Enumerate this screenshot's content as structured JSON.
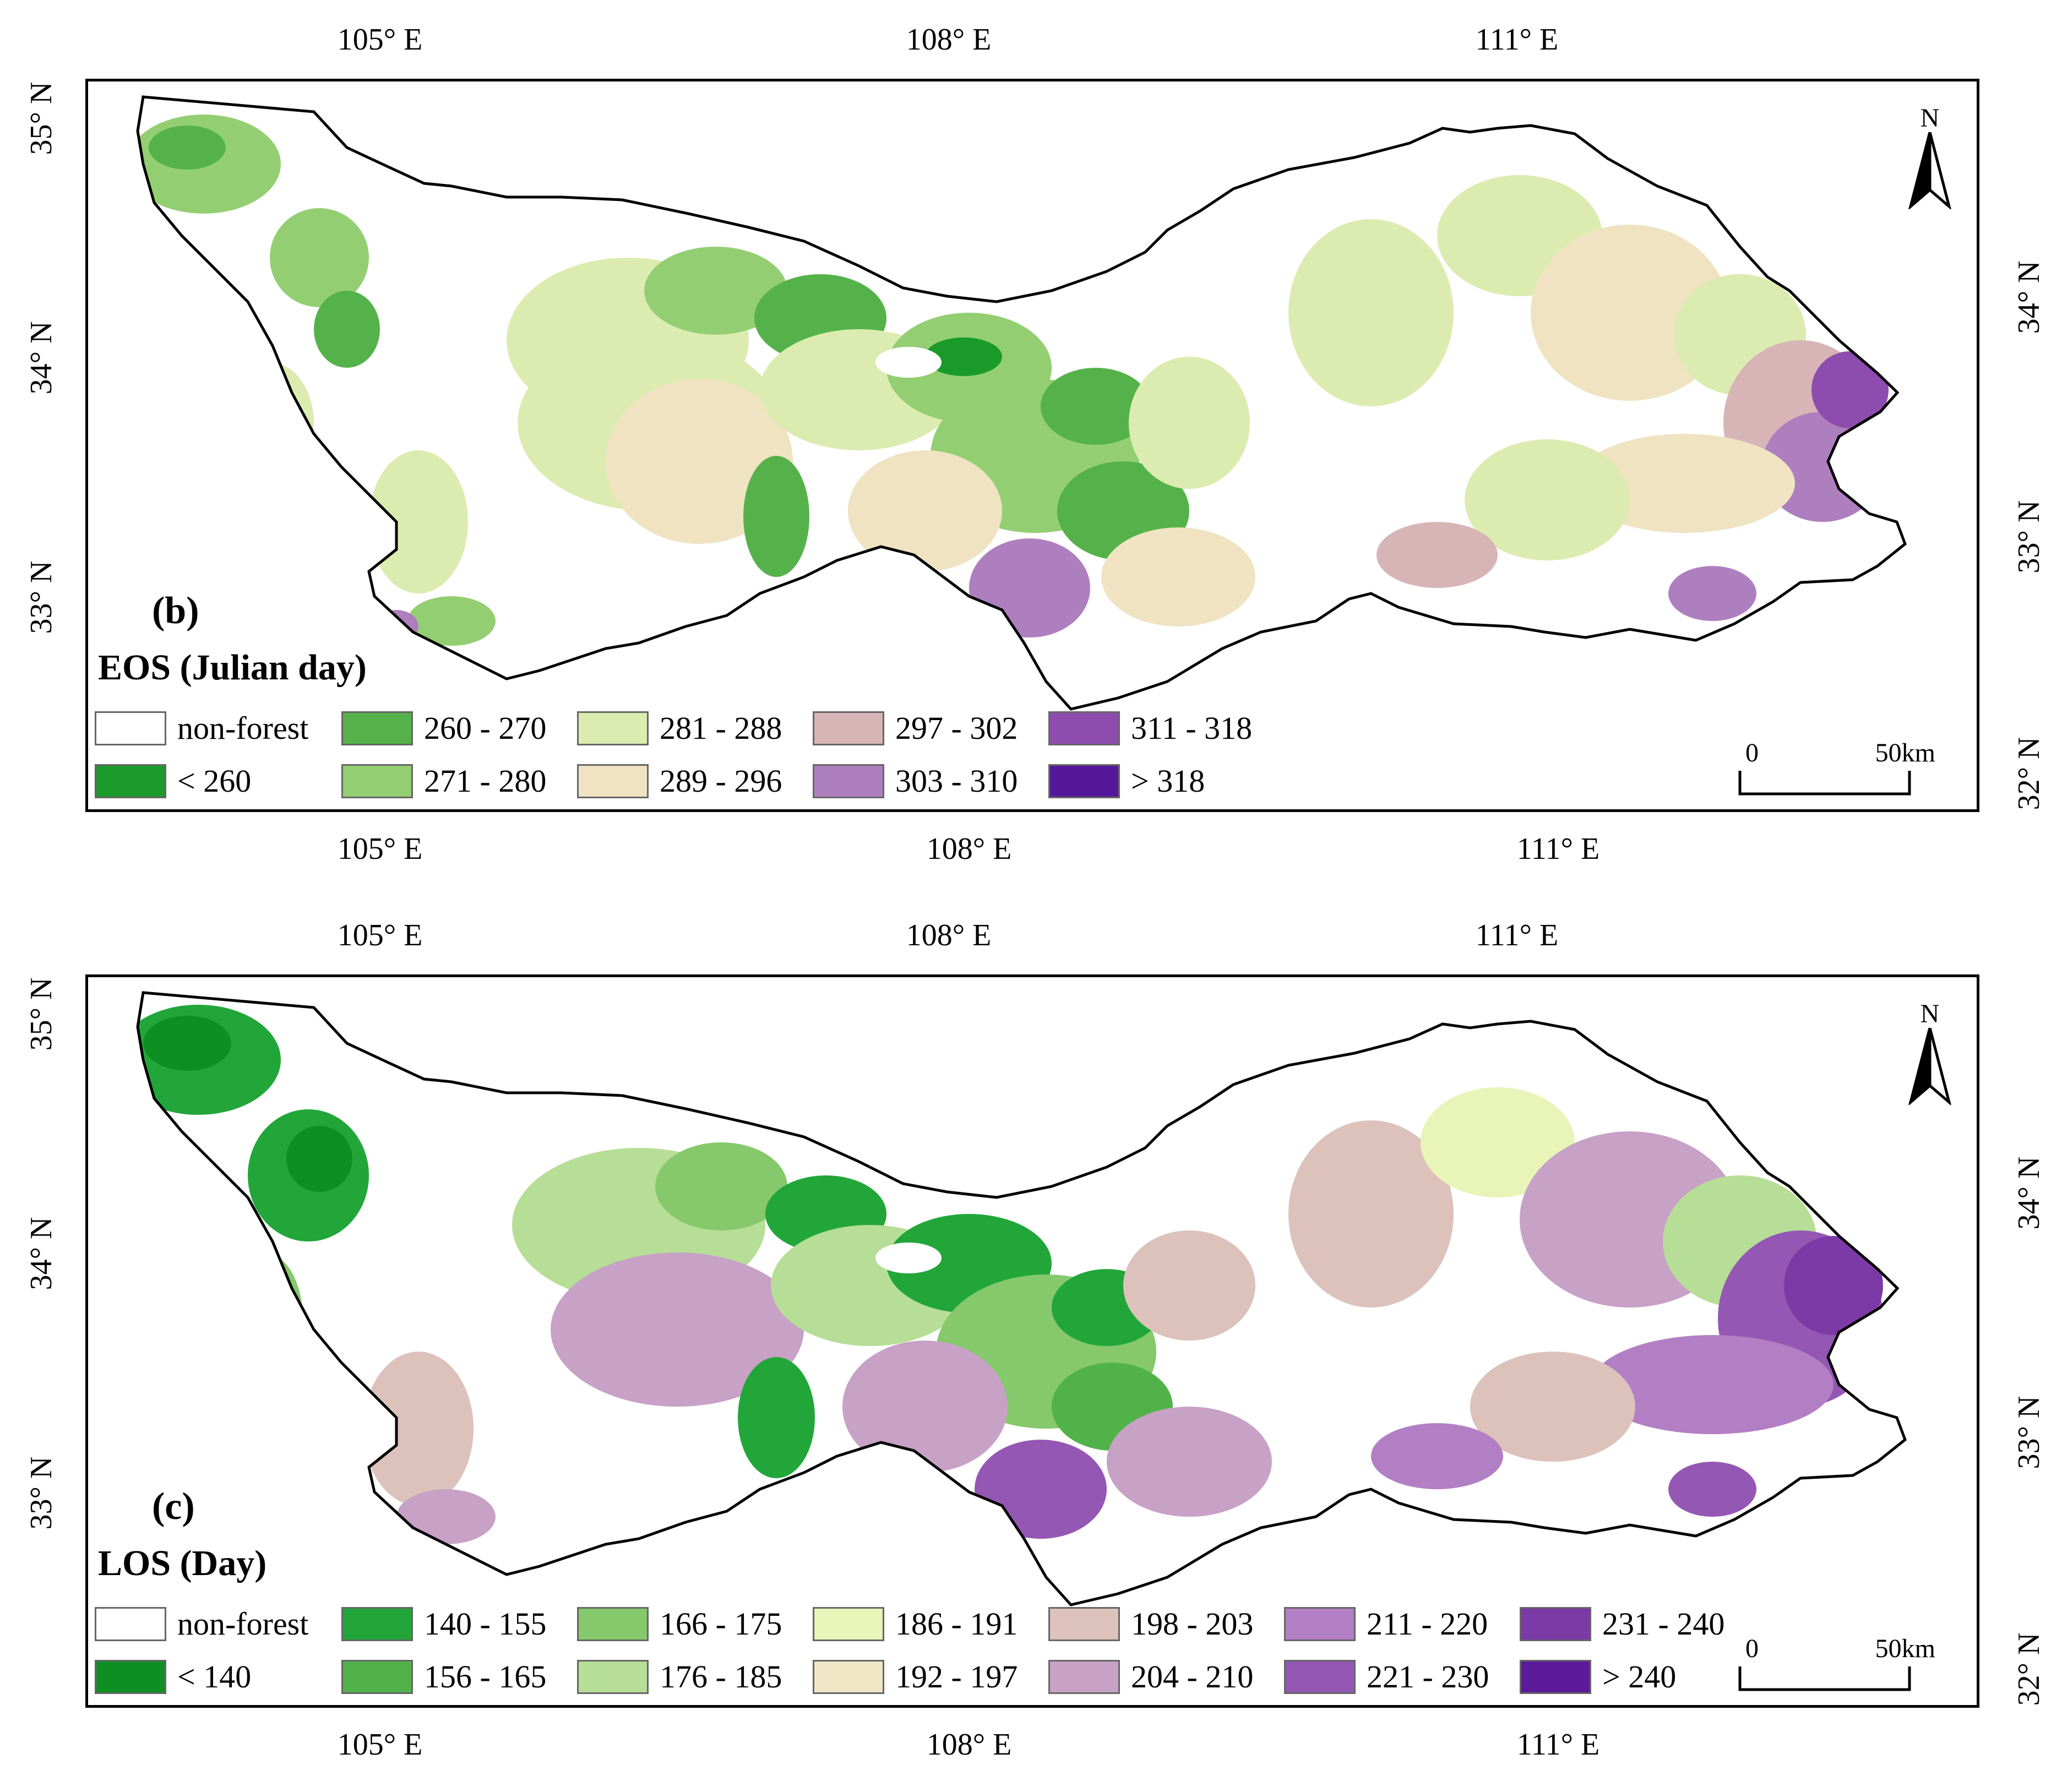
{
  "axes": {
    "lon_ticks": [
      "105° E",
      "108° E",
      "111° E"
    ],
    "lat_ticks": [
      "35° N",
      "34° N",
      "33° N",
      "32° N"
    ]
  },
  "panels": [
    {
      "id": "b",
      "label": "(b)",
      "legend_title": "EOS (Julian day)",
      "north_label": "N",
      "scale": {
        "start": "0",
        "end": "50km"
      },
      "legend": [
        {
          "label": "non-forest",
          "color": "#ffffff"
        },
        {
          "label": "< 260",
          "color": "#1a9a2a"
        },
        {
          "label": "260 - 270",
          "color": "#55b24a"
        },
        {
          "label": "271 - 280",
          "color": "#93cf72"
        },
        {
          "label": "281 - 288",
          "color": "#dcecb0"
        },
        {
          "label": "289 - 296",
          "color": "#efe3c2"
        },
        {
          "label": "297 - 302",
          "color": "#d7b5b7"
        },
        {
          "label": "303 - 310",
          "color": "#ae7fbe"
        },
        {
          "label": "311 - 318",
          "color": "#8e4cae"
        },
        {
          "label": "> 318",
          "color": "#55189b"
        }
      ]
    },
    {
      "id": "c",
      "label": "(c)",
      "legend_title": "LOS (Day)",
      "north_label": "N",
      "scale": {
        "start": "0",
        "end": "50km"
      },
      "legend": [
        {
          "label": "non-forest",
          "color": "#ffffff"
        },
        {
          "label": "< 140",
          "color": "#0e8f23"
        },
        {
          "label": "140 - 155",
          "color": "#22a63a"
        },
        {
          "label": "156 - 165",
          "color": "#52b24a"
        },
        {
          "label": "166 - 175",
          "color": "#86c86c"
        },
        {
          "label": "176 - 185",
          "color": "#b6de96"
        },
        {
          "label": "186 - 191",
          "color": "#e8f4b8"
        },
        {
          "label": "192 - 197",
          "color": "#f1e6c6"
        },
        {
          "label": "198 - 203",
          "color": "#dcc2bb"
        },
        {
          "label": "204 - 210",
          "color": "#c8a1c6"
        },
        {
          "label": "211 - 220",
          "color": "#b37fc4"
        },
        {
          "label": "221 - 230",
          "color": "#9457b4"
        },
        {
          "label": "231 - 240",
          "color": "#7b3aa6"
        },
        {
          "label": "> 240",
          "color": "#5b1a99"
        }
      ]
    }
  ]
}
